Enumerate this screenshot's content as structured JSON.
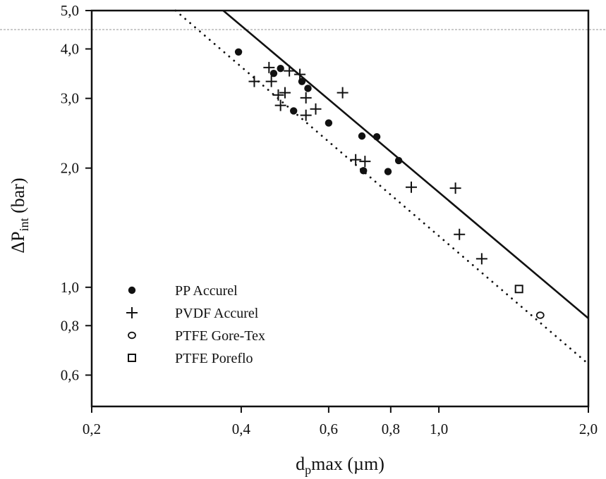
{
  "chart_data": {
    "type": "scatter",
    "x_scale": "log",
    "y_scale": "log",
    "xlim": [
      0.2,
      2.0
    ],
    "ylim": [
      0.5,
      5.0
    ],
    "xlabel": {
      "base": "d",
      "sub": "p",
      "rest": "max (µm)"
    },
    "ylabel": {
      "base": "ΔP",
      "sub": "int",
      "rest": " (bar)"
    },
    "x_ticks": [
      {
        "value": 0.2,
        "label": "0,2"
      },
      {
        "value": 0.4,
        "label": "0,4"
      },
      {
        "value": 0.6,
        "label": "0,6"
      },
      {
        "value": 0.8,
        "label": "0,8"
      },
      {
        "value": 1.0,
        "label": "1,0"
      },
      {
        "value": 2.0,
        "label": "2,0"
      }
    ],
    "y_ticks": [
      {
        "value": 0.6,
        "label": "0,6"
      },
      {
        "value": 0.8,
        "label": "0,8"
      },
      {
        "value": 1.0,
        "label": "1,0"
      },
      {
        "value": 2.0,
        "label": "2,0"
      },
      {
        "value": 3.0,
        "label": "3,0"
      },
      {
        "value": 4.0,
        "label": "4,0"
      },
      {
        "value": 5.0,
        "label": "5,0"
      }
    ],
    "legend_position": "lower-left",
    "series": [
      {
        "name": "PP Accurel",
        "marker": "filled-circle",
        "points": [
          [
            0.395,
            3.93
          ],
          [
            0.465,
            3.47
          ],
          [
            0.48,
            3.57
          ],
          [
            0.51,
            2.79
          ],
          [
            0.53,
            3.31
          ],
          [
            0.545,
            3.18
          ],
          [
            0.6,
            2.6
          ],
          [
            0.7,
            2.41
          ],
          [
            0.705,
            1.97
          ],
          [
            0.75,
            2.4
          ],
          [
            0.79,
            1.96
          ],
          [
            0.83,
            2.09
          ]
        ]
      },
      {
        "name": "PVDF Accurel",
        "marker": "plus",
        "points": [
          [
            0.425,
            3.31
          ],
          [
            0.455,
            3.59
          ],
          [
            0.46,
            3.31
          ],
          [
            0.475,
            3.06
          ],
          [
            0.48,
            2.88
          ],
          [
            0.49,
            3.1
          ],
          [
            0.5,
            3.52
          ],
          [
            0.525,
            3.45
          ],
          [
            0.54,
            3.01
          ],
          [
            0.54,
            2.72
          ],
          [
            0.565,
            2.82
          ],
          [
            0.64,
            3.1
          ],
          [
            0.68,
            2.1
          ],
          [
            0.71,
            2.08
          ],
          [
            0.88,
            1.79
          ],
          [
            1.08,
            1.78
          ],
          [
            1.1,
            1.36
          ],
          [
            1.22,
            1.18
          ]
        ]
      },
      {
        "name": "PTFE Gore-Tex",
        "marker": "open-circle",
        "points": [
          [
            1.6,
            0.85
          ]
        ]
      },
      {
        "name": "PTFE Poreflo",
        "marker": "open-square",
        "points": [
          [
            1.45,
            0.99
          ]
        ]
      }
    ],
    "lines": [
      {
        "style": "solid",
        "from": [
          0.368,
          5.0
        ],
        "to": [
          2.0,
          0.835
        ]
      },
      {
        "style": "dotted",
        "from": [
          0.295,
          5.0
        ],
        "to": [
          2.0,
          0.64
        ]
      }
    ],
    "grid": false
  }
}
